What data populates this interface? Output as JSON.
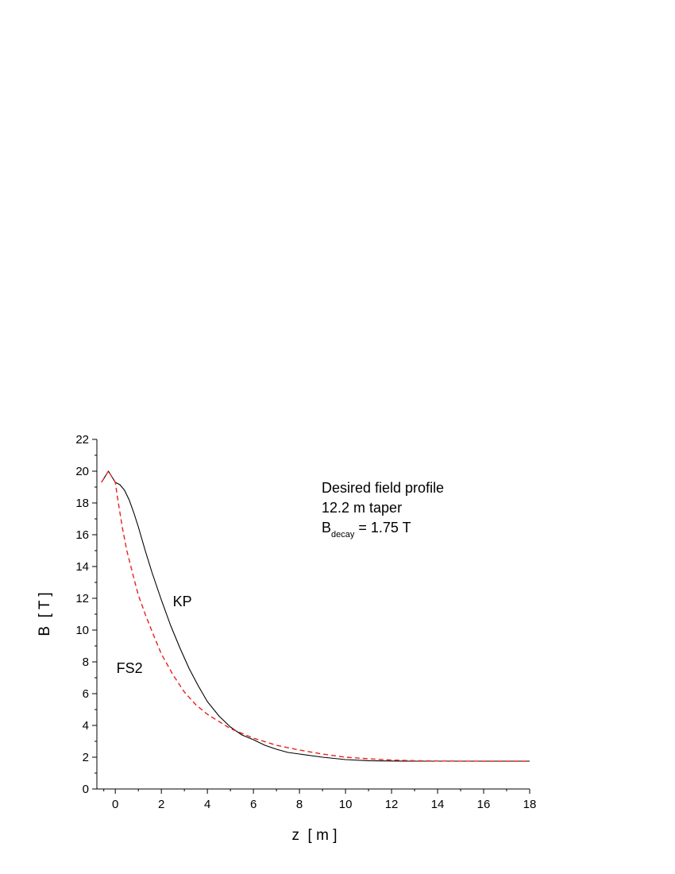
{
  "chart_data": {
    "type": "line",
    "title": "",
    "xlabel": "z  [ m ]",
    "ylabel": "B  [ T ]",
    "xlim": [
      -0.8,
      18
    ],
    "ylim": [
      0,
      22
    ],
    "x_ticks": [
      "0",
      "2",
      "4",
      "6",
      "8",
      "10",
      "12",
      "14",
      "16",
      "18"
    ],
    "y_ticks": [
      "0",
      "2",
      "4",
      "6",
      "8",
      "10",
      "12",
      "14",
      "16",
      "18",
      "20",
      "22"
    ],
    "grid": false,
    "annotation": {
      "line1": "Desired field profile",
      "line2": "12.2 m taper",
      "b_symbol": "B",
      "b_subscript": "decay",
      "b_value": " = 1.75 T"
    },
    "series": [
      {
        "name": "KP",
        "color": "#000000",
        "dash": "solid",
        "x": [
          -0.6,
          -0.3,
          0.0,
          0.2,
          0.4,
          0.6,
          0.8,
          1.0,
          1.3,
          1.6,
          2.0,
          2.4,
          2.8,
          3.2,
          3.6,
          4.0,
          4.5,
          5.0,
          5.5,
          6.0,
          6.5,
          7.0,
          7.5,
          8.0,
          9.0,
          10.0,
          11.0,
          12.0,
          13.0,
          14.0,
          16.0,
          18.0
        ],
        "y": [
          19.3,
          20.0,
          19.3,
          19.15,
          18.8,
          18.2,
          17.4,
          16.5,
          15.0,
          13.6,
          11.9,
          10.3,
          8.9,
          7.6,
          6.5,
          5.5,
          4.6,
          3.9,
          3.4,
          3.1,
          2.75,
          2.5,
          2.3,
          2.2,
          2.0,
          1.85,
          1.78,
          1.76,
          1.75,
          1.75,
          1.75,
          1.75
        ]
      },
      {
        "name": "FS2",
        "color": "#e8211c",
        "dash": "dashed",
        "x": [
          -0.6,
          -0.3,
          0.0,
          0.1,
          0.3,
          0.5,
          0.8,
          1.0,
          1.3,
          1.6,
          2.0,
          2.5,
          3.0,
          3.5,
          4.0,
          5.0,
          6.0,
          7.0,
          8.0,
          9.0,
          10.0,
          11.0,
          12.0,
          13.0,
          14.0,
          16.0,
          18.0
        ],
        "y": [
          19.3,
          20.0,
          19.3,
          18.3,
          16.5,
          15.0,
          13.3,
          12.2,
          11.0,
          9.9,
          8.5,
          7.2,
          6.1,
          5.3,
          4.7,
          3.8,
          3.2,
          2.75,
          2.45,
          2.2,
          2.0,
          1.9,
          1.82,
          1.78,
          1.76,
          1.75,
          1.75
        ]
      }
    ],
    "series_labels": [
      {
        "text": "KP",
        "x": 2.5,
        "y": 11.5
      },
      {
        "text": "FS2",
        "x": 0.05,
        "y": 7.3
      }
    ]
  }
}
